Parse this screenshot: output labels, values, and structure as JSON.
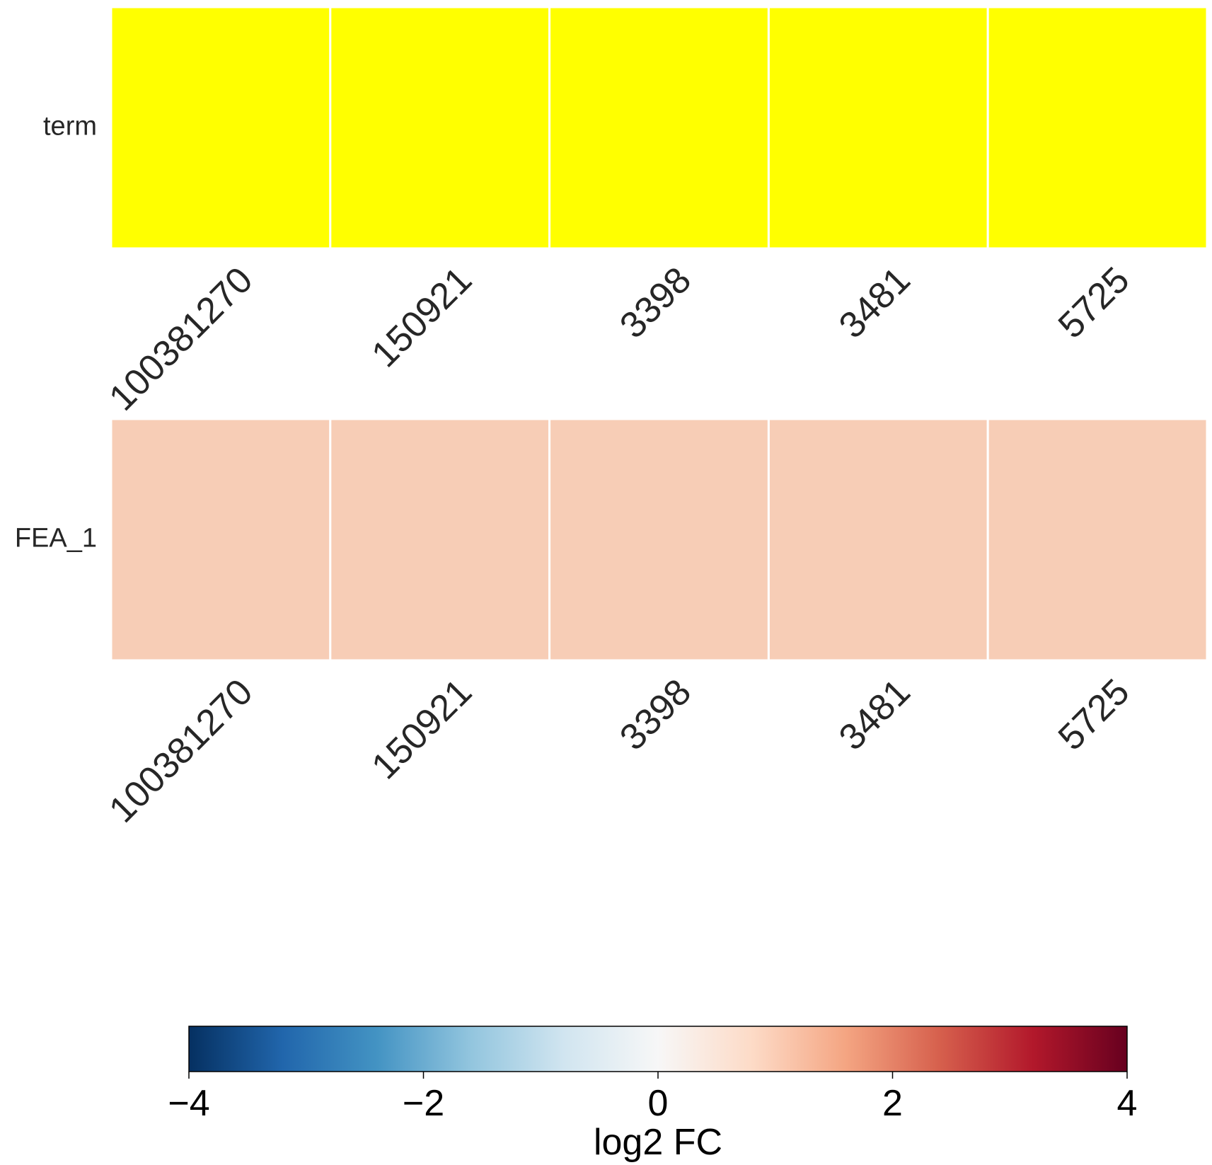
{
  "chart_data": {
    "type": "heatmap",
    "rows": [
      {
        "label": "term",
        "columns": [
          "100381270",
          "150921",
          "3398",
          "3481",
          "5725"
        ],
        "values": [
          null,
          null,
          null,
          null,
          null
        ],
        "cell_color": "#ffff00"
      },
      {
        "label": "FEA_1",
        "columns": [
          "100381270",
          "150921",
          "3398",
          "3481",
          "5725"
        ],
        "values": [
          1,
          1,
          1,
          1,
          1
        ],
        "cell_color": "#f7cdb6"
      }
    ],
    "colorbar": {
      "label": "log2 FC",
      "range": [
        -4,
        4
      ],
      "ticks": [
        -4,
        -2,
        0,
        2,
        4
      ],
      "tick_labels": [
        "−4",
        "−2",
        "0",
        "2",
        "4"
      ],
      "colormap": "RdBu_r",
      "stops": [
        "#053061",
        "#2166ac",
        "#4393c3",
        "#92c5de",
        "#d1e5f0",
        "#f7f7f7",
        "#fddbc7",
        "#f4a582",
        "#d6604d",
        "#b2182b",
        "#67001f"
      ],
      "orientation": "horizontal",
      "placement": "bottom"
    },
    "grid_line_color": "#ffffff"
  }
}
